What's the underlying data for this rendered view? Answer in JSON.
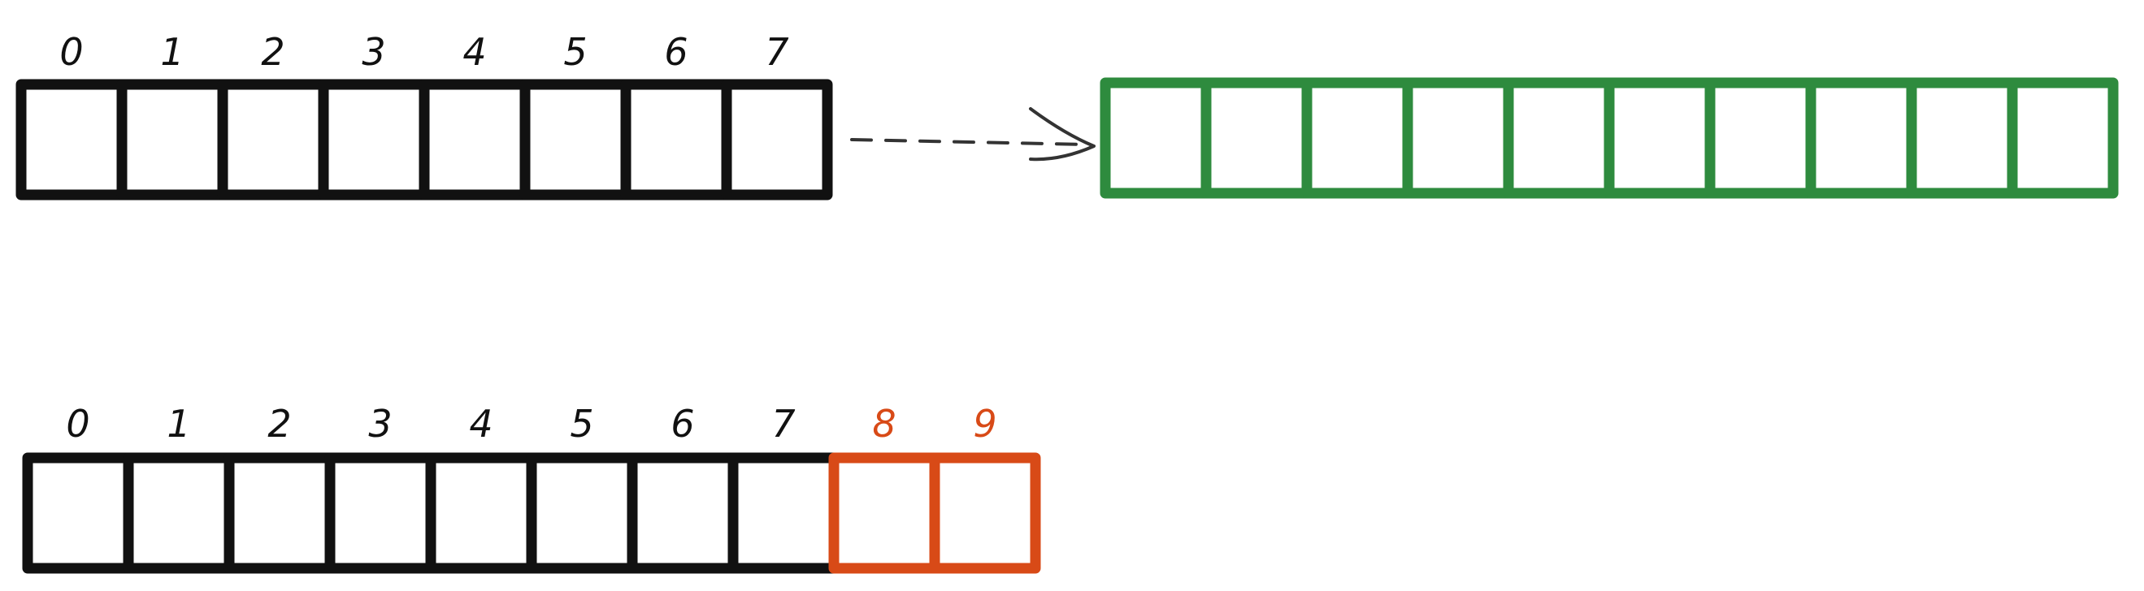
{
  "colors": {
    "ink": "#111111",
    "copy_array": "#2e8b3e",
    "new_slots": "#d84a17",
    "arrow": "#333333"
  },
  "source_array": {
    "indices": [
      "0",
      "1",
      "2",
      "3",
      "4",
      "5",
      "6",
      "7"
    ]
  },
  "copy_array": {
    "cell_count": 10
  },
  "resized_array": {
    "indices": [
      "0",
      "1",
      "2",
      "3",
      "4",
      "5",
      "6",
      "7"
    ],
    "added_indices": [
      "8",
      "9"
    ]
  }
}
